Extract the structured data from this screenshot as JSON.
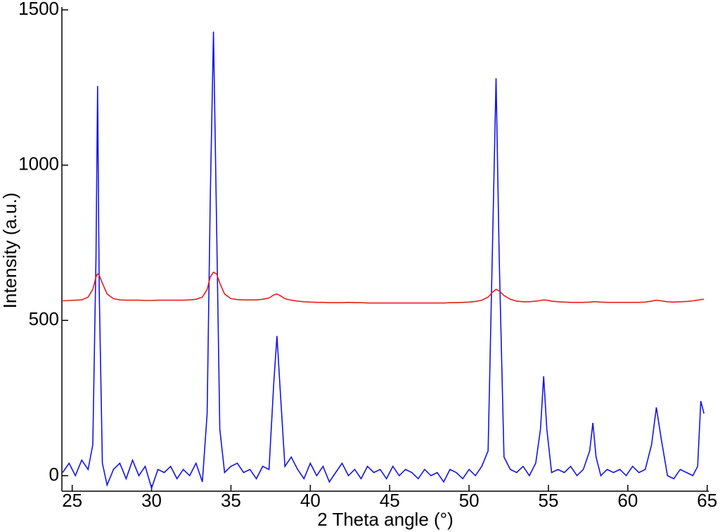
{
  "chart_data": {
    "type": "line",
    "xlabel": "2 Theta angle (°)",
    "ylabel": "Intensity (a.u.)",
    "x": [
      24.4,
      24.8,
      25.2,
      25.6,
      26.0,
      26.3,
      26.5,
      26.6,
      26.7,
      26.9,
      27.2,
      27.6,
      28.0,
      28.4,
      28.8,
      29.2,
      29.6,
      30.0,
      30.4,
      30.8,
      31.2,
      31.6,
      32.0,
      32.4,
      32.8,
      33.2,
      33.5,
      33.7,
      33.9,
      34.1,
      34.3,
      34.6,
      35.0,
      35.4,
      35.8,
      36.2,
      36.6,
      37.0,
      37.4,
      37.7,
      37.9,
      38.1,
      38.4,
      38.8,
      39.2,
      39.6,
      40.0,
      40.4,
      40.8,
      41.2,
      41.6,
      42.0,
      42.4,
      42.8,
      43.2,
      43.6,
      44.0,
      44.4,
      44.8,
      45.2,
      45.6,
      46.0,
      46.4,
      46.8,
      47.2,
      47.6,
      48.0,
      48.4,
      48.8,
      49.2,
      49.6,
      50.0,
      50.4,
      50.8,
      51.2,
      51.5,
      51.7,
      51.9,
      52.2,
      52.6,
      53.0,
      53.4,
      53.8,
      54.2,
      54.5,
      54.7,
      54.9,
      55.2,
      55.6,
      56.0,
      56.4,
      56.8,
      57.2,
      57.6,
      57.8,
      58.0,
      58.3,
      58.7,
      59.1,
      59.5,
      59.9,
      60.3,
      60.7,
      61.1,
      61.5,
      61.8,
      62.1,
      62.5,
      62.9,
      63.3,
      63.7,
      64.1,
      64.4,
      64.6,
      64.8
    ],
    "series": [
      {
        "color": "#1414e6",
        "values": [
          10,
          40,
          0,
          50,
          20,
          100,
          700,
          1255,
          600,
          40,
          -30,
          20,
          40,
          -10,
          50,
          0,
          30,
          -40,
          20,
          10,
          30,
          -10,
          20,
          0,
          40,
          -20,
          200,
          900,
          1430,
          800,
          150,
          10,
          30,
          40,
          10,
          20,
          -10,
          30,
          20,
          300,
          450,
          280,
          30,
          60,
          20,
          -10,
          40,
          0,
          30,
          -20,
          10,
          40,
          0,
          20,
          -10,
          30,
          10,
          20,
          -10,
          30,
          0,
          20,
          10,
          -10,
          20,
          0,
          10,
          -20,
          20,
          10,
          -10,
          20,
          0,
          30,
          80,
          800,
          1280,
          700,
          60,
          20,
          10,
          30,
          0,
          40,
          150,
          320,
          150,
          10,
          20,
          10,
          30,
          0,
          20,
          80,
          170,
          60,
          0,
          20,
          10,
          20,
          0,
          30,
          10,
          20,
          100,
          220,
          120,
          0,
          -10,
          20,
          10,
          0,
          30,
          240,
          200
        ]
      },
      {
        "color": "#e61e1e",
        "values": [
          563,
          564,
          565,
          566,
          575,
          600,
          640,
          650,
          645,
          620,
          585,
          570,
          566,
          565,
          565,
          565,
          564,
          564,
          565,
          565,
          565,
          565,
          565,
          566,
          568,
          575,
          600,
          640,
          655,
          650,
          620,
          585,
          570,
          567,
          566,
          566,
          566,
          568,
          572,
          582,
          585,
          580,
          570,
          565,
          562,
          560,
          559,
          558,
          558,
          557,
          557,
          557,
          558,
          557,
          557,
          556,
          556,
          556,
          556,
          556,
          556,
          556,
          556,
          556,
          556,
          556,
          556,
          556,
          557,
          557,
          558,
          559,
          561,
          565,
          575,
          592,
          600,
          595,
          580,
          568,
          562,
          560,
          560,
          562,
          564,
          566,
          565,
          562,
          560,
          559,
          558,
          558,
          558,
          559,
          560,
          560,
          559,
          558,
          558,
          558,
          558,
          558,
          558,
          559,
          562,
          565,
          563,
          560,
          559,
          560,
          561,
          563,
          565,
          567,
          568
        ]
      }
    ],
    "xlim": [
      24.35,
      65.1
    ],
    "xticks": [
      25,
      30,
      35,
      40,
      45,
      50,
      55,
      60,
      65
    ],
    "ylim": [
      -50,
      1500
    ],
    "yticks": [
      0,
      500,
      1000,
      1500
    ],
    "grid": false
  }
}
